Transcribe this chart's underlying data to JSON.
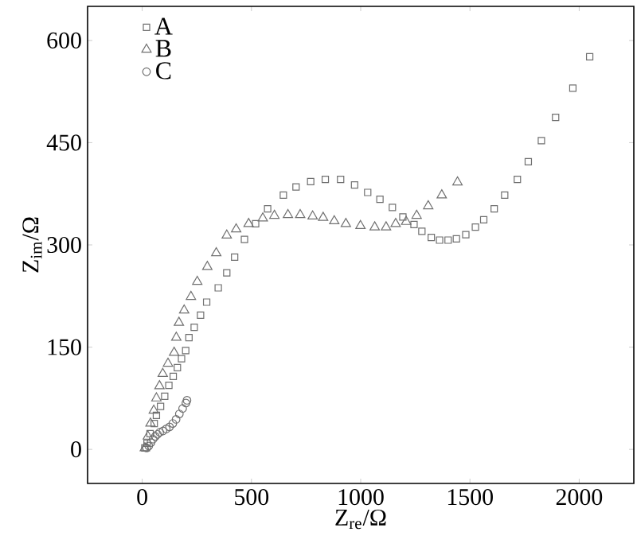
{
  "chart_data": {
    "type": "scatter",
    "xlabel": "Z$_{re}$/Ω",
    "ylabel": "Z$_{im}$/Ω",
    "xlim": [
      -250,
      2250
    ],
    "ylim": [
      -50,
      650
    ],
    "xticks": [
      0,
      500,
      1000,
      1500,
      2000
    ],
    "yticks": [
      0,
      150,
      300,
      450,
      600
    ],
    "legend": "top left",
    "grid": false,
    "series": [
      {
        "name": "A",
        "color": "#707070",
        "marker": "square",
        "x": [
          12,
          22,
          36,
          55,
          65,
          84,
          103,
          122,
          142,
          161,
          180,
          199,
          214,
          238,
          267,
          295,
          348,
          387,
          423,
          468,
          519,
          574,
          646,
          704,
          771,
          838,
          908,
          972,
          1032,
          1088,
          1145,
          1193,
          1244,
          1280,
          1323,
          1361,
          1400,
          1438,
          1481,
          1525,
          1563,
          1611,
          1659,
          1717,
          1767,
          1827,
          1892,
          1971,
          2048
        ],
        "values": [
          2,
          9,
          23,
          38,
          50,
          63,
          78,
          94,
          107,
          120,
          133,
          145,
          164,
          179,
          197,
          216,
          237,
          259,
          282,
          308,
          331,
          353,
          373,
          385,
          393,
          396,
          396,
          388,
          377,
          367,
          355,
          341,
          330,
          320,
          311,
          307,
          307,
          309,
          315,
          326,
          337,
          353,
          373,
          396,
          422,
          453,
          487,
          530,
          576
        ]
      },
      {
        "name": "B",
        "color": "#707070",
        "marker": "triangle",
        "x": [
          12,
          26,
          38,
          53,
          65,
          79,
          94,
          118,
          146,
          156,
          168,
          192,
          223,
          252,
          298,
          339,
          387,
          430,
          487,
          552,
          605,
          667,
          723,
          780,
          828,
          879,
          932,
          999,
          1064,
          1116,
          1160,
          1208,
          1256,
          1309,
          1371,
          1443
        ],
        "values": [
          2,
          19,
          38,
          57,
          75,
          93,
          111,
          126,
          142,
          164,
          186,
          204,
          224,
          246,
          268,
          288,
          314,
          323,
          331,
          339,
          343,
          344,
          344,
          342,
          340,
          335,
          331,
          328,
          326,
          326,
          331,
          334,
          343,
          357,
          373,
          392
        ]
      },
      {
        "name": "C",
        "color": "#707070",
        "marker": "circle",
        "x": [
          20,
          30,
          40,
          50,
          60,
          70,
          80,
          95,
          110,
          125,
          140,
          155,
          170,
          185,
          200,
          205
        ],
        "values": [
          2,
          5,
          10,
          15,
          19,
          22,
          25,
          27,
          30,
          33,
          38,
          44,
          52,
          60,
          68,
          72
        ]
      }
    ]
  }
}
